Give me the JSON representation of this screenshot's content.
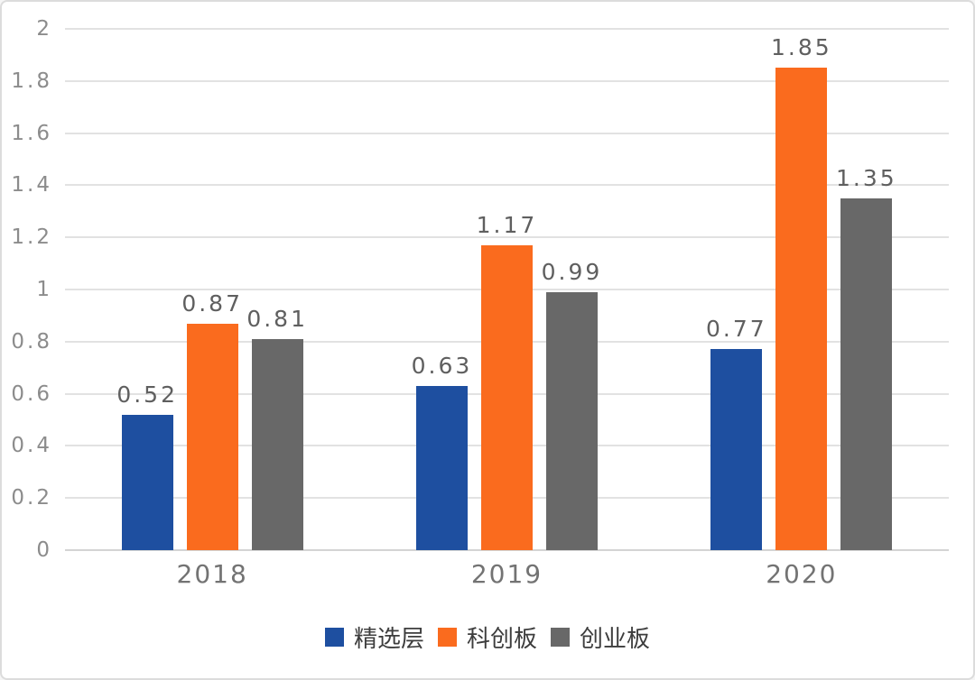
{
  "chart_data": {
    "type": "bar",
    "title": "",
    "xlabel": "",
    "ylabel": "",
    "categories": [
      "2018",
      "2019",
      "2020"
    ],
    "series": [
      {
        "name": "精选层",
        "color": "#1E4FA0",
        "values": [
          0.52,
          0.63,
          0.77
        ],
        "labels": [
          "0.52",
          "0.63",
          "0.77"
        ]
      },
      {
        "name": "科创板",
        "color": "#FA6B1E",
        "values": [
          0.87,
          1.17,
          1.85
        ],
        "labels": [
          "0.87",
          "1.17",
          "1.85"
        ]
      },
      {
        "name": "创业板",
        "color": "#686868",
        "values": [
          0.81,
          0.99,
          1.35
        ],
        "labels": [
          "0.81",
          "0.99",
          "1.35"
        ]
      }
    ],
    "ylim": [
      0,
      2
    ],
    "ytick_step": 0.2,
    "ytick_labels": [
      "0",
      "0.2",
      "0.4",
      "0.6",
      "0.8",
      "1",
      "1.2",
      "1.4",
      "1.6",
      "1.8",
      "2"
    ],
    "grid": true,
    "legend_position": "bottom"
  },
  "colors": {
    "background": "#FFFFFF",
    "card_border": "#DCDCDC",
    "grid": "#E2E2E2",
    "axis_line": "#D4D4D4",
    "tick_label": "#8C8C8C",
    "data_label": "#5F5F5F",
    "x_label": "#737373",
    "legend_text": "#3D3D3D"
  }
}
